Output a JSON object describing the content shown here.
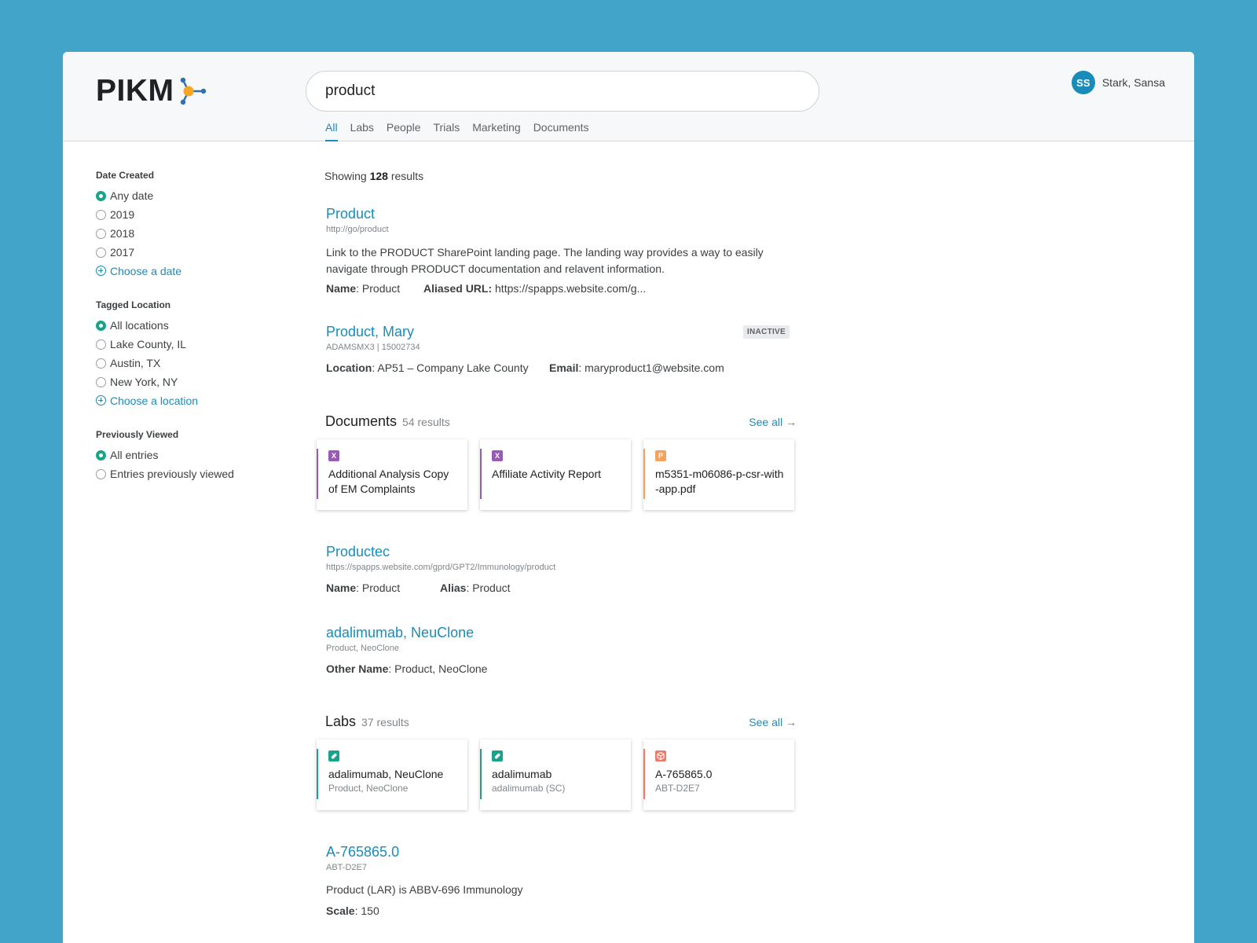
{
  "header": {
    "logo": "PIKM",
    "search_value": "product",
    "tabs": [
      "All",
      "Labs",
      "People",
      "Trials",
      "Marketing",
      "Documents"
    ],
    "active_tab": "All",
    "user": {
      "initials": "SS",
      "name": "Stark, Sansa"
    }
  },
  "sidebar": {
    "date": {
      "title": "Date Created",
      "options": [
        "Any date",
        "2019",
        "2018",
        "2017"
      ],
      "selected": "Any date",
      "add_label": "Choose a date"
    },
    "location": {
      "title": "Tagged Location",
      "options": [
        "All locations",
        "Lake County, IL",
        "Austin, TX",
        "New York, NY"
      ],
      "selected": "All locations",
      "add_label": "Choose a location"
    },
    "viewed": {
      "title": "Previously Viewed",
      "options": [
        "All entries",
        "Entries previously viewed"
      ],
      "selected": "All entries"
    }
  },
  "results": {
    "count_prefix": "Showing",
    "count": "128",
    "count_suffix": "results",
    "r1": {
      "title": "Product",
      "sub": "http://go/product",
      "desc": "Link to the PRODUCT SharePoint landing page. The landing way provides a way to easily navigate through PRODUCT documentation and relavent information.",
      "meta": [
        {
          "key": "Name",
          "sep": ": ",
          "value": "Product"
        },
        {
          "key": "Aliased URL:",
          "sep": " ",
          "value": "https://spapps.website.com/g..."
        }
      ]
    },
    "r2": {
      "title": "Product, Mary",
      "sub": "ADAMSMX3 | 15002734",
      "badge": "INACTIVE",
      "meta": [
        {
          "key": "Location",
          "sep": ": ",
          "value": "AP51 – Company Lake County"
        },
        {
          "key": "Email",
          "sep": ": ",
          "value": "maryproduct1@website.com"
        }
      ]
    },
    "documents": {
      "title": "Documents",
      "count": "54 results",
      "see_all": "See all",
      "cards": [
        {
          "icon": "excel-icon",
          "letter": "X",
          "color": "#9b59b6",
          "title": "Additional Analysis Copy of EM Complaints"
        },
        {
          "icon": "excel-icon",
          "letter": "X",
          "color": "#9b59b6",
          "title": "Affiliate Activity Report"
        },
        {
          "icon": "pdf-icon",
          "letter": "P",
          "color": "#f5a25d",
          "title": "m5351-m06086-p-csr-with-app.pdf"
        }
      ]
    },
    "r3": {
      "title": "Productec",
      "sub": "https://spapps.website.com/gprd/GPT2/Immunology/product",
      "meta": [
        {
          "key": "Name",
          "sep": ": ",
          "value": "Product"
        },
        {
          "key": "Alias",
          "sep": ": ",
          "value": "Product"
        }
      ]
    },
    "r4": {
      "title": "adalimumab, NeuClone",
      "sub": "Product, NeoClone",
      "meta": [
        {
          "key": "Other Name",
          "sep": ": ",
          "value": "Product, NeoClone"
        }
      ]
    },
    "labs": {
      "title": "Labs",
      "count": "37 results",
      "see_all": "See all",
      "cards": [
        {
          "icon": "pill-icon",
          "color": "#1aa38a",
          "title": "adalimumab, NeuClone",
          "sub": "Product, NeoClone"
        },
        {
          "icon": "pill-icon",
          "color": "#1aa38a",
          "title": "adalimumab",
          "sub": "adalimumab (SC)"
        },
        {
          "icon": "cube-icon",
          "color": "#f07a67",
          "title": "A-765865.0",
          "sub": "ABT-D2E7"
        }
      ]
    },
    "r5": {
      "title": "A-765865.0",
      "sub": "ABT-D2E7",
      "desc": "Product (LAR) is ABBV-696 Immunology",
      "meta": [
        {
          "key": "Scale",
          "sep": ": ",
          "value": "150"
        }
      ]
    }
  }
}
